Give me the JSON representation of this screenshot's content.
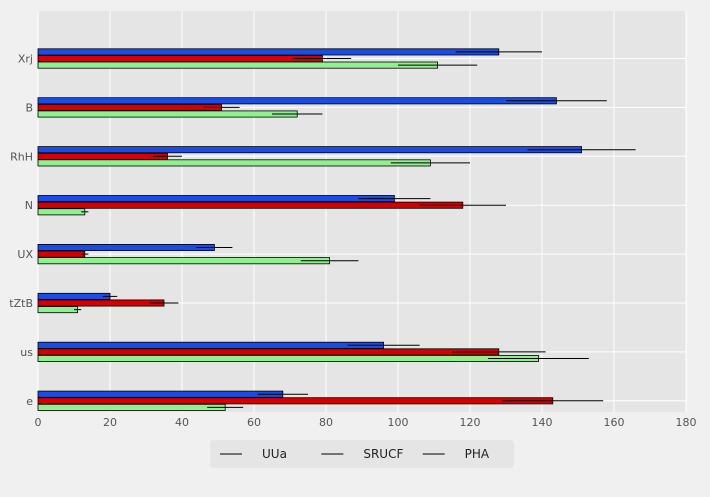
{
  "chart_data": {
    "type": "bar",
    "orientation": "horizontal",
    "title": "",
    "xlabel": "",
    "ylabel": "",
    "categories": [
      "Xrj",
      "B",
      "RhH",
      "N",
      "UX",
      "tZtB",
      "us",
      "e"
    ],
    "series": [
      {
        "name": "UUa",
        "color": "#1a4de6",
        "values": [
          128,
          144,
          151,
          99,
          49,
          20,
          96,
          68
        ],
        "errors": [
          12,
          14,
          15,
          10,
          5,
          2,
          10,
          7
        ]
      },
      {
        "name": "SRUCF",
        "color": "#d40000",
        "values": [
          79,
          51,
          36,
          118,
          13,
          35,
          128,
          143
        ],
        "errors": [
          8,
          5,
          4,
          12,
          1,
          4,
          13,
          14
        ]
      },
      {
        "name": "PHA",
        "color": "#90f090",
        "values": [
          111,
          72,
          109,
          13,
          81,
          11,
          139,
          52
        ],
        "errors": [
          11,
          7,
          11,
          1,
          8,
          1,
          14,
          5
        ]
      }
    ],
    "xlim": [
      0,
      180
    ],
    "xticks": [
      0,
      20,
      40,
      60,
      80,
      100,
      120,
      140,
      160,
      180
    ],
    "grid": true,
    "legend_position": "bottom-center",
    "colors": {
      "background": "#f0f0f0",
      "plot_background": "#e5e5e5",
      "grid": "#ffffff",
      "error_bar": "#000000",
      "bar_edge": "#000000"
    }
  }
}
